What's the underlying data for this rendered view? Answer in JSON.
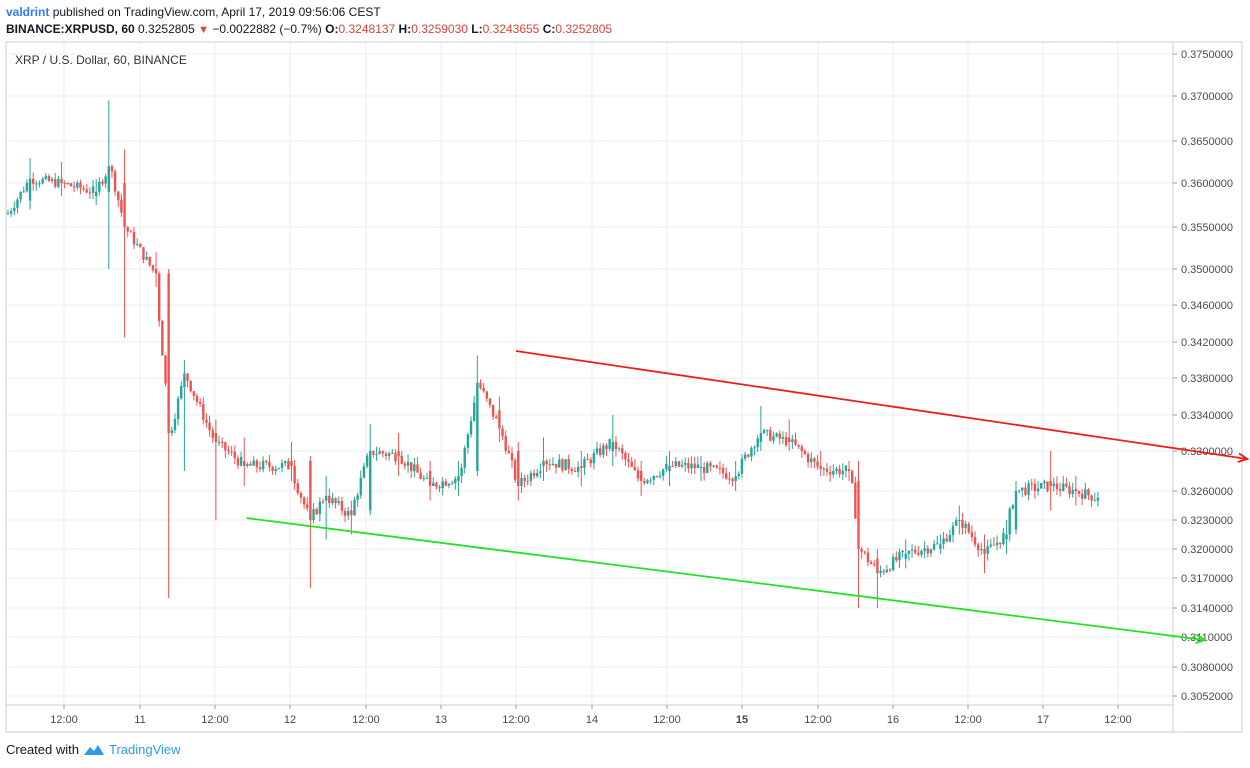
{
  "header": {
    "author": "valdrint",
    "published": "published on TradingView.com, April 17, 2019 09:56:06 CEST",
    "symbol": "BINANCE:XRPUSD, 60",
    "price": "0.3252805",
    "change": "−0.0022882 (−0.7%)",
    "o_label": "O:",
    "o_value": "0.3248137",
    "h_label": "H:",
    "h_value": "0.3259030",
    "l_label": "L:",
    "l_value": "0.3243655",
    "c_label": "C:",
    "c_value": "0.3252805"
  },
  "footer": {
    "created_with": "Created with",
    "brand": "TradingView"
  },
  "colors": {
    "up": "#26a69a",
    "down": "#ef5350",
    "resistance": "#e8201c",
    "support": "#22e222",
    "grid": "#e8eef5"
  },
  "chart_data": {
    "type": "candlestick",
    "title": "XRP / U.S. Dollar, 60, BINANCE",
    "y_ticks": [
      "0.3750000",
      "0.3700000",
      "0.3650000",
      "0.3600000",
      "0.3550000",
      "0.3500000",
      "0.3460000",
      "0.3420000",
      "0.3380000",
      "0.3340000",
      "0.3300000",
      "0.3260000",
      "0.3230000",
      "0.3200000",
      "0.3170000",
      "0.3140000",
      "0.3110000",
      "0.3080000",
      "0.3052000"
    ],
    "x_ticks": [
      "12:00",
      "11",
      "12:00",
      "12",
      "12:00",
      "13",
      "12:00",
      "14",
      "12:00",
      "15",
      "12:00",
      "16",
      "12:00",
      "17",
      "12:00"
    ],
    "highlighted_x_tick": "15",
    "price_anchors": [
      {
        "x": 5,
        "o": 0.3565,
        "c": 0.356,
        "h": 0.3575,
        "l": 0.354
      },
      {
        "x": 30,
        "o": 0.358,
        "c": 0.3605,
        "h": 0.363,
        "l": 0.357
      },
      {
        "x": 60,
        "o": 0.3605,
        "c": 0.36,
        "h": 0.3625,
        "l": 0.3585
      },
      {
        "x": 95,
        "o": 0.3585,
        "c": 0.359,
        "h": 0.3605,
        "l": 0.3575
      },
      {
        "x": 110,
        "o": 0.359,
        "c": 0.362,
        "h": 0.3695,
        "l": 0.35
      },
      {
        "x": 125,
        "o": 0.36,
        "c": 0.355,
        "h": 0.364,
        "l": 0.3425
      },
      {
        "x": 155,
        "o": 0.35,
        "c": 0.3495,
        "h": 0.352,
        "l": 0.348
      },
      {
        "x": 170,
        "o": 0.3495,
        "c": 0.332,
        "h": 0.35,
        "l": 0.315
      },
      {
        "x": 185,
        "o": 0.337,
        "c": 0.3385,
        "h": 0.34,
        "l": 0.328
      },
      {
        "x": 215,
        "o": 0.332,
        "c": 0.331,
        "h": 0.3335,
        "l": 0.323
      },
      {
        "x": 245,
        "o": 0.329,
        "c": 0.3285,
        "h": 0.3315,
        "l": 0.3265
      },
      {
        "x": 290,
        "o": 0.329,
        "c": 0.3285,
        "h": 0.331,
        "l": 0.327
      },
      {
        "x": 310,
        "o": 0.329,
        "c": 0.323,
        "h": 0.3295,
        "l": 0.316
      },
      {
        "x": 325,
        "o": 0.325,
        "c": 0.3255,
        "h": 0.3275,
        "l": 0.321
      },
      {
        "x": 350,
        "o": 0.324,
        "c": 0.3235,
        "h": 0.325,
        "l": 0.3215
      },
      {
        "x": 370,
        "o": 0.324,
        "c": 0.33,
        "h": 0.333,
        "l": 0.3235
      },
      {
        "x": 400,
        "o": 0.33,
        "c": 0.3295,
        "h": 0.332,
        "l": 0.3275
      },
      {
        "x": 430,
        "o": 0.328,
        "c": 0.3265,
        "h": 0.329,
        "l": 0.325
      },
      {
        "x": 460,
        "o": 0.327,
        "c": 0.3275,
        "h": 0.329,
        "l": 0.3255
      },
      {
        "x": 478,
        "o": 0.328,
        "c": 0.3375,
        "h": 0.3405,
        "l": 0.3275
      },
      {
        "x": 500,
        "o": 0.3345,
        "c": 0.3325,
        "h": 0.336,
        "l": 0.331
      },
      {
        "x": 518,
        "o": 0.33,
        "c": 0.3265,
        "h": 0.331,
        "l": 0.325
      },
      {
        "x": 545,
        "o": 0.3285,
        "c": 0.329,
        "h": 0.3315,
        "l": 0.327
      },
      {
        "x": 580,
        "o": 0.3285,
        "c": 0.3283,
        "h": 0.33,
        "l": 0.3265
      },
      {
        "x": 612,
        "o": 0.33,
        "c": 0.331,
        "h": 0.334,
        "l": 0.3285
      },
      {
        "x": 640,
        "o": 0.328,
        "c": 0.327,
        "h": 0.329,
        "l": 0.3255
      },
      {
        "x": 670,
        "o": 0.328,
        "c": 0.3285,
        "h": 0.33,
        "l": 0.3265
      },
      {
        "x": 700,
        "o": 0.3283,
        "c": 0.3284,
        "h": 0.3295,
        "l": 0.327
      },
      {
        "x": 735,
        "o": 0.327,
        "c": 0.3275,
        "h": 0.329,
        "l": 0.326
      },
      {
        "x": 760,
        "o": 0.331,
        "c": 0.332,
        "h": 0.335,
        "l": 0.33
      },
      {
        "x": 790,
        "o": 0.3315,
        "c": 0.331,
        "h": 0.3335,
        "l": 0.33
      },
      {
        "x": 820,
        "o": 0.3285,
        "c": 0.3282,
        "h": 0.33,
        "l": 0.3275
      },
      {
        "x": 850,
        "o": 0.3282,
        "c": 0.328,
        "h": 0.329,
        "l": 0.327
      },
      {
        "x": 860,
        "o": 0.327,
        "c": 0.32,
        "h": 0.329,
        "l": 0.314
      },
      {
        "x": 878,
        "o": 0.319,
        "c": 0.3175,
        "h": 0.32,
        "l": 0.314
      },
      {
        "x": 905,
        "o": 0.319,
        "c": 0.3195,
        "h": 0.321,
        "l": 0.318
      },
      {
        "x": 940,
        "o": 0.32,
        "c": 0.3205,
        "h": 0.3215,
        "l": 0.3195
      },
      {
        "x": 960,
        "o": 0.323,
        "c": 0.323,
        "h": 0.3245,
        "l": 0.3215
      },
      {
        "x": 985,
        "o": 0.32,
        "c": 0.3195,
        "h": 0.3215,
        "l": 0.3175
      },
      {
        "x": 1005,
        "o": 0.321,
        "c": 0.3215,
        "h": 0.323,
        "l": 0.3195
      },
      {
        "x": 1015,
        "o": 0.322,
        "c": 0.326,
        "h": 0.327,
        "l": 0.3215
      },
      {
        "x": 1050,
        "o": 0.327,
        "c": 0.3265,
        "h": 0.33,
        "l": 0.324
      },
      {
        "x": 1075,
        "o": 0.3262,
        "c": 0.326,
        "h": 0.3275,
        "l": 0.3245
      },
      {
        "x": 1098,
        "o": 0.325,
        "c": 0.3253,
        "h": 0.3259,
        "l": 0.3244
      }
    ],
    "trendlines": [
      {
        "name": "resistance",
        "from": {
          "pos": 0.466,
          "price": 0.341
        },
        "to": {
          "pos": 1.137,
          "price": 0.3292
        }
      },
      {
        "name": "support",
        "from": {
          "pos": 0.219,
          "price": 0.3232
        },
        "to": {
          "pos": 1.098,
          "price": 0.3107
        }
      }
    ],
    "grid": true
  }
}
